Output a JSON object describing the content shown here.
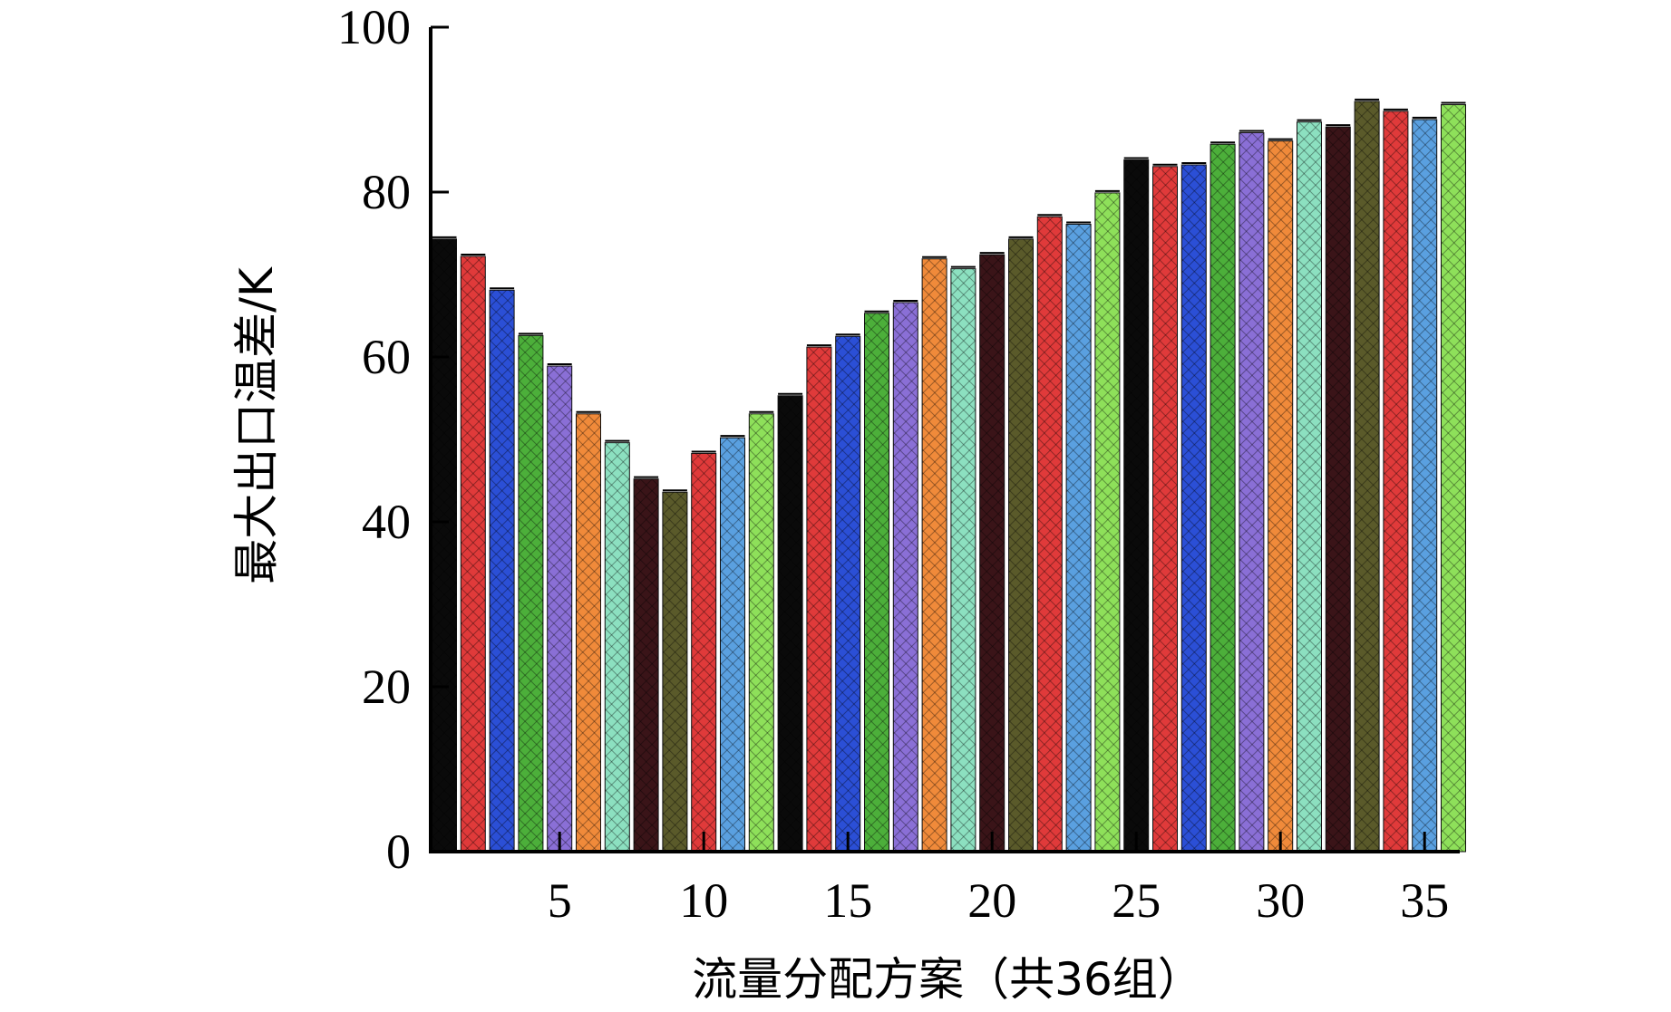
{
  "chart_data": {
    "type": "bar",
    "title": "",
    "xlabel": "流量分配方案（共36组）",
    "ylabel": "最大出口温差/K",
    "ylim": [
      0,
      100
    ],
    "yticks": [
      0,
      20,
      40,
      60,
      80,
      100
    ],
    "xticks": [
      5,
      10,
      15,
      20,
      25,
      30,
      35
    ],
    "grid": false,
    "legend": "none",
    "categories": [
      1,
      2,
      3,
      4,
      5,
      6,
      7,
      8,
      9,
      10,
      11,
      12,
      13,
      14,
      15,
      16,
      17,
      18,
      19,
      20,
      21,
      22,
      23,
      24,
      25,
      26,
      27,
      28,
      29,
      30,
      31,
      32,
      33,
      34,
      35,
      36
    ],
    "values": [
      74.3,
      72.2,
      68.1,
      62.6,
      58.9,
      53.1,
      49.6,
      45.2,
      43.6,
      48.3,
      50.2,
      53.1,
      55.3,
      61.2,
      62.5,
      65.3,
      66.6,
      71.9,
      70.7,
      72.4,
      74.3,
      77.0,
      76.1,
      79.9,
      83.9,
      83.1,
      83.3,
      85.8,
      87.2,
      86.2,
      88.5,
      87.9,
      91.0,
      89.8,
      88.8,
      90.6
    ],
    "bar_colors": [
      "#0a0a0a",
      "#e03a3a",
      "#2b4fd6",
      "#4caf3a",
      "#8a6fd6",
      "#f08a3a",
      "#8ce0c0",
      "#3a1418",
      "#5a5a2a",
      "#e03a3a",
      "#5aa0e0",
      "#8ee05a"
    ]
  }
}
